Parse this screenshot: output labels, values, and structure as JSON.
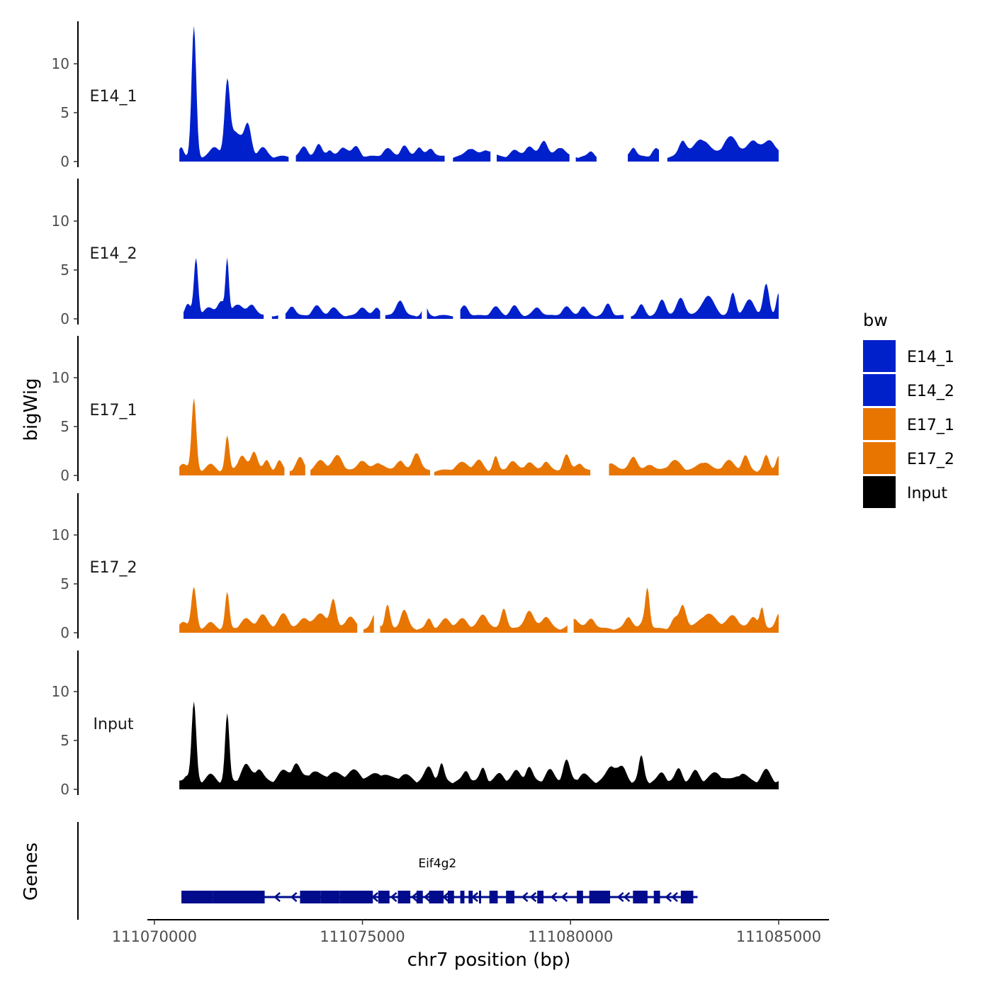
{
  "chart_data": {
    "type": "area",
    "ylabel": "bigWig",
    "genes_label": "Genes",
    "xlabel": "chr7 position (bp)",
    "xlim": [
      111069900,
      111085700
    ],
    "ylim": [
      0,
      14
    ],
    "x_ticks": [
      111070000,
      111075000,
      111080000,
      111085000
    ],
    "x_tick_labels": [
      "111070000",
      "111075000",
      "111080000",
      "111085000"
    ],
    "y_ticks": [
      0,
      5,
      10
    ],
    "y_tick_labels": [
      "0",
      "5",
      "10"
    ],
    "legend": {
      "title": "bw",
      "position": "right",
      "entries": [
        {
          "label": "E14_1",
          "color": "#0020CC"
        },
        {
          "label": "E14_2",
          "color": "#0020CC"
        },
        {
          "label": "E17_1",
          "color": "#E87500"
        },
        {
          "label": "E17_2",
          "color": "#E87500"
        },
        {
          "label": "Input",
          "color": "#000000"
        }
      ]
    },
    "tracks": [
      {
        "name": "E14_1",
        "label": "E14_1",
        "color": "#0020CC",
        "x_start": 111070600,
        "x_end": 111085000,
        "gaps": [
          [
            111073250,
            111073380
          ],
          [
            111077000,
            111077150
          ],
          [
            111078100,
            111078200
          ],
          [
            111080000,
            111080100
          ],
          [
            111080650,
            111081350
          ],
          [
            111082150,
            111082300
          ]
        ],
        "base": 0.6,
        "peaks": [
          [
            111070650,
            1.0,
            60
          ],
          [
            111070950,
            13.3,
            55
          ],
          [
            111071450,
            0.9,
            110
          ],
          [
            111071750,
            6.6,
            60
          ],
          [
            111071950,
            2.6,
            170
          ],
          [
            111072250,
            2.8,
            80
          ],
          [
            111072600,
            0.9,
            100
          ],
          [
            111073600,
            1.0,
            90
          ],
          [
            111073950,
            1.2,
            80
          ],
          [
            111074200,
            0.7,
            70
          ],
          [
            111074550,
            1.0,
            100
          ],
          [
            111074850,
            1.0,
            90
          ],
          [
            111075600,
            0.8,
            110
          ],
          [
            111076000,
            1.1,
            90
          ],
          [
            111076350,
            1.0,
            80
          ],
          [
            111076650,
            0.8,
            90
          ],
          [
            111077600,
            0.9,
            110
          ],
          [
            111078000,
            0.7,
            120
          ],
          [
            111078650,
            0.6,
            100
          ],
          [
            111079000,
            1.0,
            110
          ],
          [
            111079350,
            1.7,
            90
          ],
          [
            111079750,
            1.0,
            110
          ],
          [
            111080500,
            0.5,
            70
          ],
          [
            111081500,
            1.0,
            70
          ],
          [
            111082050,
            0.8,
            90
          ],
          [
            111082700,
            1.6,
            90
          ],
          [
            111083150,
            1.8,
            180
          ],
          [
            111083850,
            2.0,
            180
          ],
          [
            111084400,
            1.6,
            140
          ],
          [
            111084800,
            1.6,
            150
          ]
        ]
      },
      {
        "name": "E14_2",
        "label": "E14_2",
        "color": "#0020CC",
        "x_start": 111070700,
        "x_end": 111085000,
        "gaps": [
          [
            111072650,
            111072800
          ],
          [
            111073000,
            111073130
          ],
          [
            111075450,
            111075530
          ],
          [
            111076450,
            111076530
          ],
          [
            111077200,
            111077330
          ],
          [
            111081300,
            111081430
          ]
        ],
        "base": 0.4,
        "peaks": [
          [
            111070800,
            1.2,
            70
          ],
          [
            111071000,
            5.8,
            50
          ],
          [
            111071300,
            0.8,
            120
          ],
          [
            111071750,
            5.5,
            40
          ],
          [
            111071600,
            1.5,
            80
          ],
          [
            111072000,
            1.2,
            120
          ],
          [
            111072350,
            1.1,
            100
          ],
          [
            111073300,
            1.0,
            80
          ],
          [
            111073900,
            1.0,
            100
          ],
          [
            111074300,
            0.8,
            100
          ],
          [
            111075000,
            0.9,
            90
          ],
          [
            111075350,
            0.8,
            80
          ],
          [
            111075900,
            1.6,
            90
          ],
          [
            111076500,
            1.0,
            60
          ],
          [
            111077450,
            1.0,
            90
          ],
          [
            111078200,
            0.9,
            100
          ],
          [
            111078650,
            1.0,
            90
          ],
          [
            111079200,
            0.8,
            100
          ],
          [
            111079900,
            0.9,
            100
          ],
          [
            111080300,
            0.9,
            90
          ],
          [
            111080900,
            1.2,
            80
          ],
          [
            111081700,
            1.1,
            80
          ],
          [
            111082200,
            1.6,
            90
          ],
          [
            111082650,
            1.8,
            100
          ],
          [
            111083300,
            2.0,
            150
          ],
          [
            111083900,
            2.3,
            70
          ],
          [
            111084300,
            1.6,
            120
          ],
          [
            111084700,
            3.2,
            70
          ],
          [
            111085000,
            2.3,
            60
          ]
        ]
      },
      {
        "name": "E17_1",
        "label": "E17_1",
        "color": "#E87500",
        "x_start": 111070600,
        "x_end": 111085000,
        "gaps": [
          [
            111073130,
            111073230
          ],
          [
            111073630,
            111073730
          ],
          [
            111076630,
            111076720
          ],
          [
            111080500,
            111080920
          ]
        ],
        "base": 0.6,
        "peaks": [
          [
            111070700,
            0.8,
            80
          ],
          [
            111070950,
            7.3,
            55
          ],
          [
            111071350,
            0.6,
            100
          ],
          [
            111071750,
            3.5,
            50
          ],
          [
            111072100,
            1.5,
            100
          ],
          [
            111072400,
            2.0,
            80
          ],
          [
            111072700,
            1.0,
            70
          ],
          [
            111073000,
            1.0,
            70
          ],
          [
            111073500,
            1.3,
            90
          ],
          [
            111074000,
            1.0,
            120
          ],
          [
            111074400,
            1.5,
            120
          ],
          [
            111075000,
            1.1,
            100
          ],
          [
            111075400,
            0.8,
            120
          ],
          [
            111075900,
            1.1,
            90
          ],
          [
            111076300,
            1.9,
            90
          ],
          [
            111077400,
            0.8,
            150
          ],
          [
            111077800,
            1.0,
            100
          ],
          [
            111078200,
            1.4,
            60
          ],
          [
            111078600,
            0.9,
            110
          ],
          [
            111079000,
            0.8,
            110
          ],
          [
            111079400,
            0.9,
            90
          ],
          [
            111079900,
            1.6,
            80
          ],
          [
            111080200,
            0.8,
            80
          ],
          [
            111081000,
            0.8,
            100
          ],
          [
            111081500,
            1.5,
            90
          ],
          [
            111081900,
            0.7,
            90
          ],
          [
            111082500,
            1.0,
            150
          ],
          [
            111083200,
            0.9,
            140
          ],
          [
            111083800,
            1.0,
            130
          ],
          [
            111084200,
            1.5,
            80
          ],
          [
            111084700,
            1.5,
            70
          ],
          [
            111085000,
            1.5,
            70
          ]
        ]
      },
      {
        "name": "E17_2",
        "label": "E17_2",
        "color": "#E87500",
        "x_start": 111070600,
        "x_end": 111085000,
        "gaps": [
          [
            111074900,
            111075000
          ],
          [
            111075300,
            111075400
          ],
          [
            111079950,
            111080050
          ]
        ],
        "base": 0.5,
        "peaks": [
          [
            111070700,
            0.8,
            80
          ],
          [
            111070950,
            4.2,
            60
          ],
          [
            111071350,
            0.6,
            100
          ],
          [
            111071750,
            3.7,
            50
          ],
          [
            111072200,
            1.0,
            120
          ],
          [
            111072600,
            1.4,
            120
          ],
          [
            111073100,
            1.5,
            120
          ],
          [
            111073600,
            1.0,
            120
          ],
          [
            111074000,
            1.5,
            150
          ],
          [
            111074300,
            2.8,
            70
          ],
          [
            111074700,
            1.2,
            120
          ],
          [
            111075300,
            1.4,
            80
          ],
          [
            111075600,
            2.4,
            60
          ],
          [
            111076000,
            1.9,
            90
          ],
          [
            111076600,
            1.0,
            70
          ],
          [
            111077000,
            1.0,
            110
          ],
          [
            111077400,
            1.0,
            120
          ],
          [
            111077900,
            1.4,
            120
          ],
          [
            111078400,
            2.1,
            70
          ],
          [
            111079000,
            1.8,
            110
          ],
          [
            111079400,
            1.2,
            110
          ],
          [
            111080100,
            1.0,
            110
          ],
          [
            111080500,
            1.0,
            100
          ],
          [
            111081400,
            1.2,
            90
          ],
          [
            111081800,
            1.0,
            90
          ],
          [
            111081850,
            3.4,
            50
          ],
          [
            111082500,
            1.0,
            80
          ],
          [
            111082700,
            2.4,
            80
          ],
          [
            111083300,
            1.5,
            200
          ],
          [
            111083900,
            1.3,
            140
          ],
          [
            111084400,
            1.2,
            100
          ],
          [
            111084600,
            2.0,
            50
          ],
          [
            111085000,
            1.5,
            80
          ]
        ]
      },
      {
        "name": "Input",
        "label": "Input",
        "color": "#000000",
        "x_start": 111070600,
        "x_end": 111085000,
        "gaps": [],
        "base": 1.0,
        "peaks": [
          [
            111070750,
            0.6,
            60
          ],
          [
            111070950,
            8.0,
            55
          ],
          [
            111071350,
            0.6,
            100
          ],
          [
            111071750,
            6.8,
            50
          ],
          [
            111072200,
            1.6,
            110
          ],
          [
            111072500,
            1.2,
            100
          ],
          [
            111073100,
            1.0,
            120
          ],
          [
            111073400,
            1.7,
            100
          ],
          [
            111073800,
            0.9,
            150
          ],
          [
            111074300,
            0.8,
            200
          ],
          [
            111074800,
            1.0,
            150
          ],
          [
            111075400,
            0.8,
            200
          ],
          [
            111076000,
            0.6,
            150
          ],
          [
            111076600,
            1.4,
            100
          ],
          [
            111076900,
            1.7,
            60
          ],
          [
            111077500,
            1.0,
            80
          ],
          [
            111077900,
            1.3,
            70
          ],
          [
            111078300,
            0.7,
            100
          ],
          [
            111078700,
            1.0,
            100
          ],
          [
            111079000,
            1.4,
            80
          ],
          [
            111079500,
            1.1,
            100
          ],
          [
            111079900,
            2.1,
            80
          ],
          [
            111080300,
            0.7,
            110
          ],
          [
            111081000,
            1.6,
            120
          ],
          [
            111081250,
            1.2,
            90
          ],
          [
            111081700,
            2.5,
            60
          ],
          [
            111082200,
            0.8,
            90
          ],
          [
            111082600,
            1.2,
            80
          ],
          [
            111083000,
            1.0,
            90
          ],
          [
            111083500,
            0.8,
            150
          ],
          [
            111084100,
            0.8,
            120
          ],
          [
            111084700,
            1.1,
            100
          ]
        ]
      }
    ],
    "gene": {
      "name": "Eif4g2",
      "label": "Eif4g2",
      "color": "#000C8C",
      "x_start": 111070650,
      "x_end": 111082950,
      "strand": "-",
      "exons": [
        [
          111070650,
          111071400
        ],
        [
          111071400,
          111072650
        ],
        [
          111073500,
          111074000
        ],
        [
          111074000,
          111074450
        ],
        [
          111074450,
          111075050
        ],
        [
          111075050,
          111075250
        ],
        [
          111075380,
          111075650
        ],
        [
          111075850,
          111076150
        ],
        [
          111076300,
          111076450
        ],
        [
          111076600,
          111076950
        ],
        [
          111077050,
          111077200
        ],
        [
          111077350,
          111077450
        ],
        [
          111077550,
          111077650
        ],
        [
          111077800,
          111077850
        ],
        [
          111078050,
          111078250
        ],
        [
          111078450,
          111078650
        ],
        [
          111079200,
          111079350
        ],
        [
          111080150,
          111080300
        ],
        [
          111080450,
          111080950
        ],
        [
          111081500,
          111081850
        ],
        [
          111082000,
          111082150
        ],
        [
          111082650,
          111082950
        ]
      ],
      "arrows": [
        111072950,
        111073350,
        111075300,
        111075750,
        111076250,
        111076550,
        111077000,
        111077700,
        111078900,
        111079100,
        111079600,
        111079850,
        111081200,
        111081350,
        111082350,
        111082500
      ]
    }
  }
}
